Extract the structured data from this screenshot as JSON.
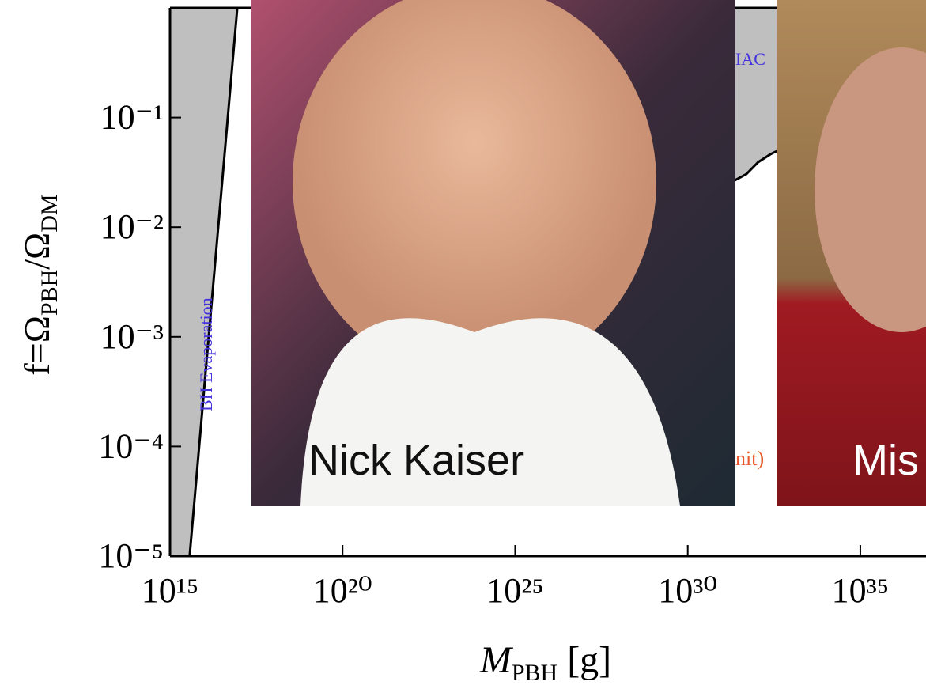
{
  "chart_data": {
    "type": "constraint",
    "x_label": [
      "M",
      "PBH",
      " [g]"
    ],
    "y_label": [
      "f=Ω",
      "PBH",
      "/Ω",
      "DM"
    ],
    "log_x": true,
    "log_y": true,
    "xlim": [
      1000000000000000.0,
      8e+36
    ],
    "ylim": [
      1e-05,
      1
    ],
    "xticks": [
      {
        "value": 1000000000000000.0,
        "label": "10¹⁵"
      },
      {
        "value": 1e+20,
        "label": "10²⁰"
      },
      {
        "value": 1e+25,
        "label": "10²⁵"
      },
      {
        "value": 1e+30,
        "label": "10³⁰"
      },
      {
        "value": 1e+35,
        "label": "10³⁵"
      }
    ],
    "yticks": [
      {
        "value": 1e-05,
        "label": "10⁻⁵"
      },
      {
        "value": 0.0001,
        "label": "10⁻⁴"
      },
      {
        "value": 0.001,
        "label": "10⁻³"
      },
      {
        "value": 0.01,
        "label": "10⁻²"
      },
      {
        "value": 0.1,
        "label": "10⁻¹"
      }
    ],
    "series": [
      {
        "name": "BH Evaporation",
        "color": "#bfbfbf",
        "fill": "left",
        "x": [
          3700000000000000.0,
          8.9e+16
        ],
        "values": [
          1e-05,
          1
        ]
      },
      {
        "name": "IAC",
        "color": "#bfbfbf",
        "fill": "above",
        "x": [
          2.3e+31,
          5e+31,
          1.1e+32,
          2.5e+32,
          4.2e+32
        ],
        "values": [
          0.0267,
          0.0305,
          0.0392,
          0.0463,
          0.0502
        ]
      }
    ],
    "annotations": [
      {
        "text": "nit)",
        "color": "#e8582a"
      }
    ]
  },
  "photos": [
    {
      "caption": "Nick Kaiser"
    },
    {
      "caption": "Mis"
    }
  ]
}
